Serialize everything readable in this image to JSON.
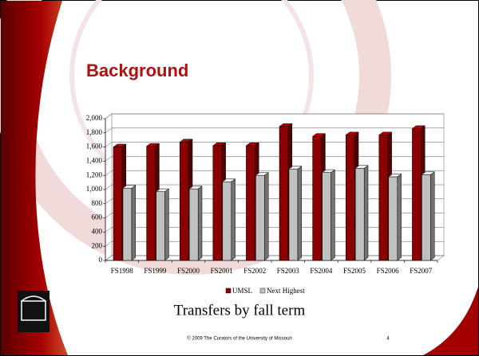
{
  "slide": {
    "title": "Background",
    "footer": "© 2009 The Curators of the University of Missouri",
    "page_number": 4
  },
  "chart_data": {
    "type": "bar3d",
    "title": "Transfers by fall term",
    "categories": [
      "FS1998",
      "FS1999",
      "FS2000",
      "FS2001",
      "FS2002",
      "FS2003",
      "FS2004",
      "FS2005",
      "FS2006",
      "FS2007"
    ],
    "series": [
      {
        "name": "UMSL",
        "color": "#8b0000",
        "values": [
          1600,
          1610,
          1670,
          1620,
          1620,
          1890,
          1750,
          1770,
          1770,
          1860
        ]
      },
      {
        "name": "Next Highest",
        "color": "#c0c0c0",
        "values": [
          1020,
          970,
          1010,
          1110,
          1200,
          1290,
          1240,
          1300,
          1180,
          1210
        ]
      }
    ],
    "ylim": [
      0,
      2000
    ],
    "yticks": [
      0,
      200,
      400,
      600,
      800,
      {
        "value": 1000,
        "label": "1,000"
      },
      {
        "value": 1200,
        "label": "1,200"
      },
      {
        "value": 1400,
        "label": "1,400"
      },
      {
        "value": 1600,
        "label": "1,600"
      },
      {
        "value": 1800,
        "label": "1,800"
      },
      {
        "value": 2000,
        "label": "2,000"
      }
    ],
    "grid": true,
    "legend": "bottom"
  }
}
